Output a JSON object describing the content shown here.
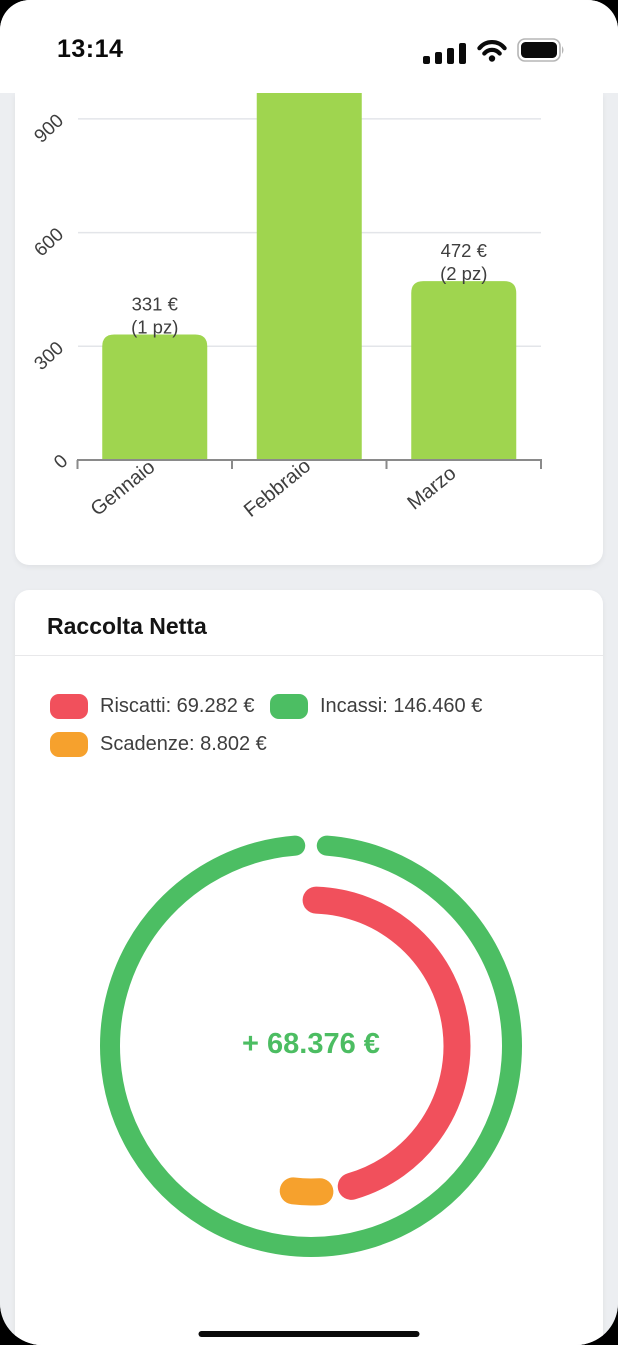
{
  "status_bar": {
    "time": "13:14"
  },
  "raccolta_card": {
    "title": "Raccolta Netta",
    "legend": [
      {
        "name": "Riscatti",
        "label": "Riscatti: 69.282 €",
        "color": "#f1505c"
      },
      {
        "name": "Incassi",
        "label": "Incassi: 146.460 €",
        "color": "#4cbe63"
      },
      {
        "name": "Scadenze",
        "label": "Scadenze: 8.802 €",
        "color": "#f6a12d"
      }
    ]
  },
  "chart_data": [
    {
      "type": "bar",
      "categories": [
        "Gennaio",
        "Febbraio",
        "Marzo"
      ],
      "values": [
        331,
        null,
        472
      ],
      "clipped": [
        false,
        true,
        false
      ],
      "pieces": [
        1,
        null,
        2
      ],
      "bar_labels": [
        [
          "331 €",
          "(1 pz)"
        ],
        [],
        [
          "472 €",
          "(2 pz)"
        ]
      ],
      "yticks": [
        0,
        300,
        600,
        900
      ],
      "ylim_visible": [
        0,
        968
      ],
      "bar_color": "#9fd54f",
      "grid": true
    },
    {
      "type": "donut",
      "title": "Raccolta Netta",
      "center_label": "+ 68.376 €",
      "center_label_color": "#4cbd62",
      "rings": [
        {
          "name": "Incassi",
          "display_value": "146.460 €",
          "value": 146460,
          "color": "#4cbe63",
          "radius": 201,
          "stroke_width": 20,
          "start_deg": 4.5,
          "end_deg": 355.5
        },
        {
          "name": "Riscatti",
          "display_value": "69.282 €",
          "value": 69282,
          "color": "#f1505c",
          "radius": 146,
          "stroke_width": 27,
          "start_deg": 2,
          "end_deg": 164
        },
        {
          "name": "Scadenze",
          "display_value": "8.802 €",
          "value": 8802,
          "color": "#f6a12d",
          "radius": 146,
          "stroke_width": 27,
          "start_deg": 176.5,
          "end_deg": 187
        }
      ]
    }
  ]
}
